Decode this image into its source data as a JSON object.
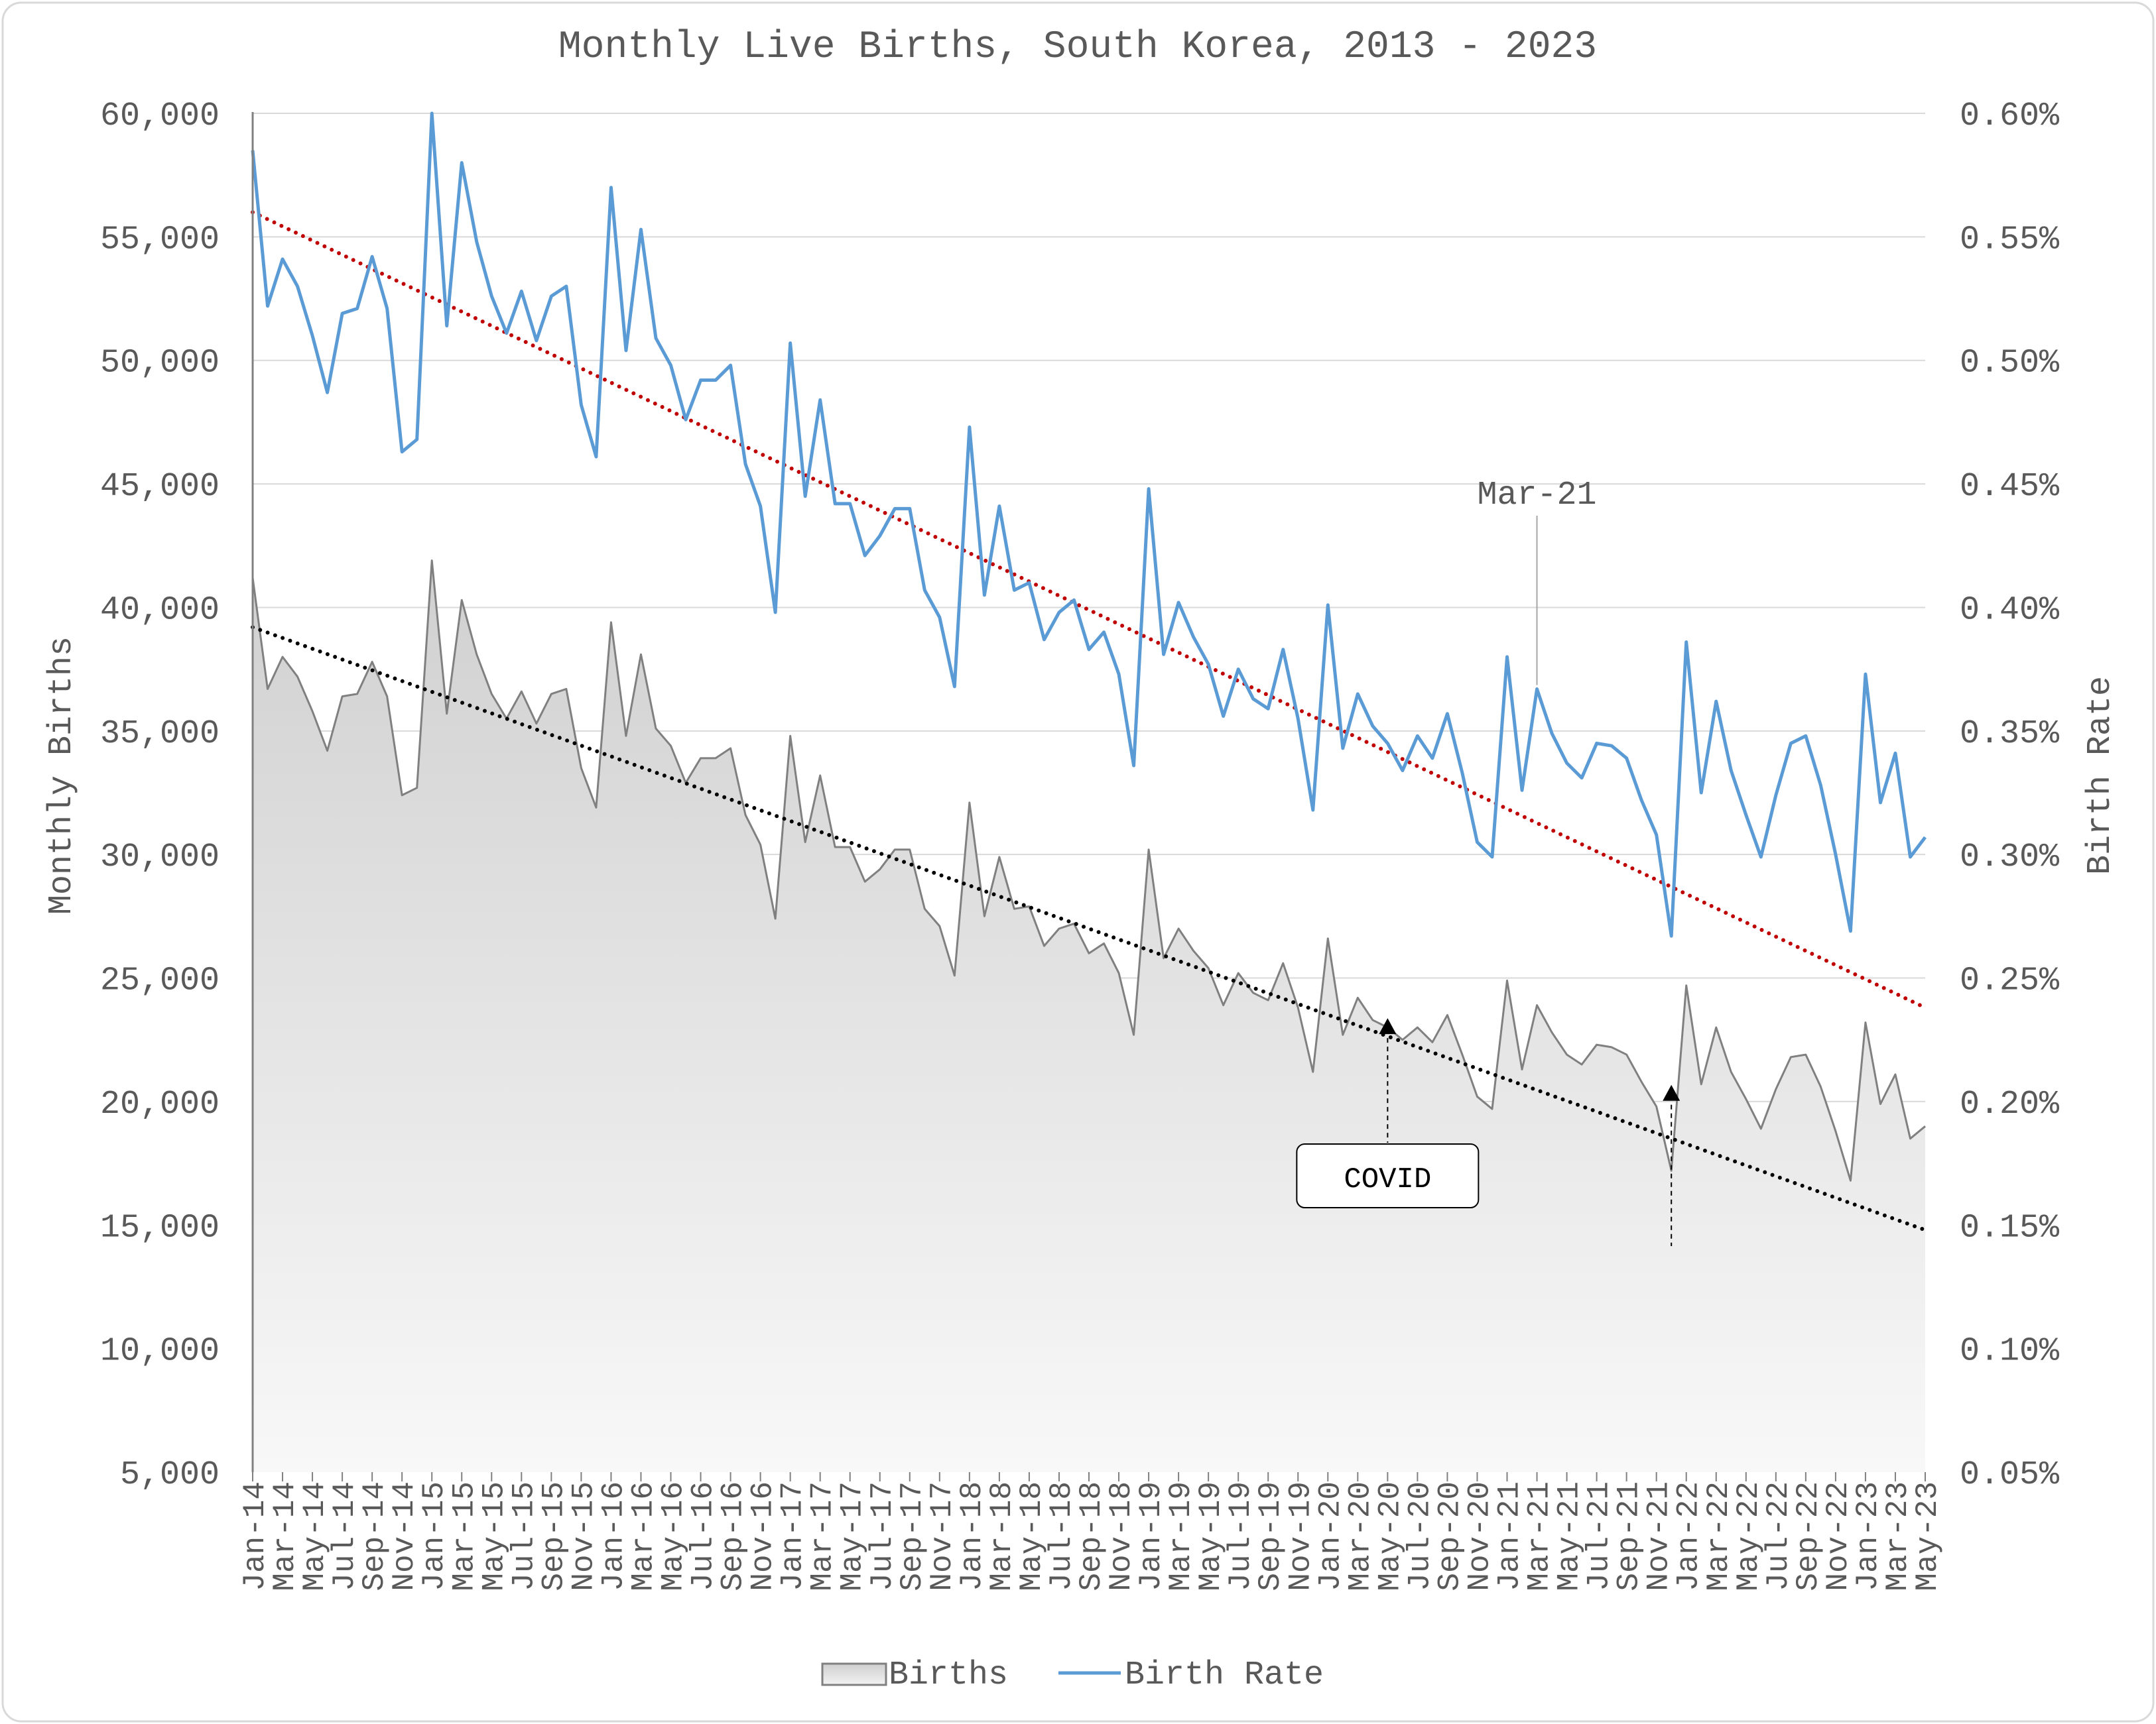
{
  "chart_data": {
    "type": "area",
    "title": "Monthly Live Births, South Korea, 2013 - 2023",
    "ylabel_left": "Monthly Births",
    "ylabel_right": "Birth Rate",
    "ylim_left": [
      5000,
      60000
    ],
    "ylim_right": [
      0.0005,
      0.006
    ],
    "left_ticks": [
      "5,000",
      "10,000",
      "15,000",
      "20,000",
      "25,000",
      "30,000",
      "35,000",
      "40,000",
      "45,000",
      "50,000",
      "55,000",
      "60,000"
    ],
    "right_ticks": [
      "0.05%",
      "0.10%",
      "0.15%",
      "0.20%",
      "0.25%",
      "0.30%",
      "0.35%",
      "0.40%",
      "0.45%",
      "0.50%",
      "0.55%",
      "0.60%"
    ],
    "grid": true,
    "legend_position": "bottom",
    "x_start": "2014-01",
    "x_end": "2023-05",
    "x_tick_labels": [
      "Jan-14",
      "Mar-14",
      "May-14",
      "Jul-14",
      "Sep-14",
      "Nov-14",
      "Jan-15",
      "Mar-15",
      "May-15",
      "Jul-15",
      "Sep-15",
      "Nov-15",
      "Jan-16",
      "Mar-16",
      "May-16",
      "Jul-16",
      "Sep-16",
      "Nov-16",
      "Jan-17",
      "Mar-17",
      "May-17",
      "Jul-17",
      "Sep-17",
      "Nov-17",
      "Jan-18",
      "Mar-18",
      "May-18",
      "Jul-18",
      "Sep-18",
      "Nov-18",
      "Jan-19",
      "Mar-19",
      "May-19",
      "Jul-19",
      "Sep-19",
      "Nov-19",
      "Jan-20",
      "Mar-20",
      "May-20",
      "Jul-20",
      "Sep-20",
      "Nov-20",
      "Jan-21",
      "Mar-21",
      "May-21",
      "Jul-21",
      "Sep-21",
      "Nov-21",
      "Jan-22",
      "Mar-22",
      "May-22",
      "Jul-22",
      "Sep-22",
      "Nov-22",
      "Jan-23",
      "Mar-23",
      "May-23"
    ],
    "series": [
      {
        "name": "Births",
        "axis": "left",
        "kind": "area",
        "color": "#808080",
        "values": [
          41200,
          36700,
          38000,
          37200,
          35800,
          34200,
          36400,
          36500,
          37800,
          36400,
          32400,
          32700,
          41900,
          35700,
          40300,
          38100,
          36500,
          35500,
          36600,
          35300,
          36500,
          36700,
          33500,
          31900,
          39400,
          34800,
          38100,
          35100,
          34400,
          32900,
          33900,
          33900,
          34300,
          31600,
          30400,
          27400,
          34800,
          30500,
          33200,
          30300,
          30300,
          28900,
          29400,
          30200,
          30200,
          27800,
          27100,
          25100,
          32100,
          27500,
          29900,
          27800,
          27900,
          26300,
          27000,
          27200,
          26000,
          26400,
          25200,
          22700,
          30200,
          25800,
          27000,
          26100,
          25400,
          23900,
          25200,
          24400,
          24100,
          25600,
          23800,
          21200,
          26600,
          22700,
          24200,
          23300,
          23000,
          22500,
          23000,
          22400,
          23500,
          21900,
          20200,
          19700,
          24900,
          21300,
          23900,
          22800,
          21900,
          21500,
          22300,
          22200,
          21900,
          20800,
          19800,
          17200,
          24700,
          20700,
          23000,
          21200,
          20100,
          18900,
          20500,
          21800,
          21900,
          20600,
          18800,
          16800,
          23200,
          19900,
          21100,
          18500,
          19000
        ]
      },
      {
        "name": "Birth Rate",
        "axis": "right",
        "kind": "line",
        "color": "#5b9bd5",
        "values": [
          0.00585,
          0.00522,
          0.00541,
          0.0053,
          0.0051,
          0.00487,
          0.00519,
          0.00521,
          0.00542,
          0.00521,
          0.00463,
          0.00468,
          0.006,
          0.00514,
          0.0058,
          0.00548,
          0.00526,
          0.00511,
          0.00528,
          0.00508,
          0.00526,
          0.0053,
          0.00482,
          0.00461,
          0.0057,
          0.00504,
          0.00553,
          0.00509,
          0.00498,
          0.00476,
          0.00492,
          0.00492,
          0.00498,
          0.00458,
          0.00441,
          0.00398,
          0.00507,
          0.00445,
          0.00484,
          0.00442,
          0.00442,
          0.00421,
          0.00429,
          0.0044,
          0.0044,
          0.00407,
          0.00396,
          0.00368,
          0.00473,
          0.00405,
          0.00441,
          0.00407,
          0.0041,
          0.00387,
          0.00398,
          0.00403,
          0.00383,
          0.0039,
          0.00373,
          0.00336,
          0.00448,
          0.00381,
          0.00402,
          0.00388,
          0.00377,
          0.00356,
          0.00375,
          0.00363,
          0.00359,
          0.00383,
          0.00355,
          0.00318,
          0.00401,
          0.00343,
          0.00365,
          0.00352,
          0.00345,
          0.00334,
          0.00348,
          0.00339,
          0.00357,
          0.00333,
          0.00305,
          0.00299,
          0.0038,
          0.00326,
          0.00367,
          0.00349,
          0.00337,
          0.00331,
          0.00345,
          0.00344,
          0.00339,
          0.00322,
          0.00308,
          0.00267,
          0.00386,
          0.00325,
          0.00362,
          0.00334,
          0.00316,
          0.00299,
          0.00324,
          0.00345,
          0.00348,
          0.00328,
          0.003,
          0.00269,
          0.00373,
          0.00321,
          0.00341,
          0.00299,
          0.00307
        ]
      }
    ],
    "trendlines": [
      {
        "series": "Births",
        "axis": "left",
        "style": "dotted",
        "color": "#000000",
        "start": 39200,
        "end": 14800
      },
      {
        "series": "Birth Rate",
        "axis": "right",
        "style": "dotted",
        "color": "#c00000",
        "start": 0.0056,
        "end": 0.00238
      }
    ],
    "annotations": [
      {
        "text": "Mar-21",
        "x": "2021-03",
        "type": "label-with-leader"
      },
      {
        "text": "COVID",
        "type": "callout-box"
      }
    ],
    "covid_markers": [
      {
        "x": "2020-05",
        "y": 23000
      },
      {
        "x": "2021-12",
        "y": 20300
      }
    ]
  }
}
